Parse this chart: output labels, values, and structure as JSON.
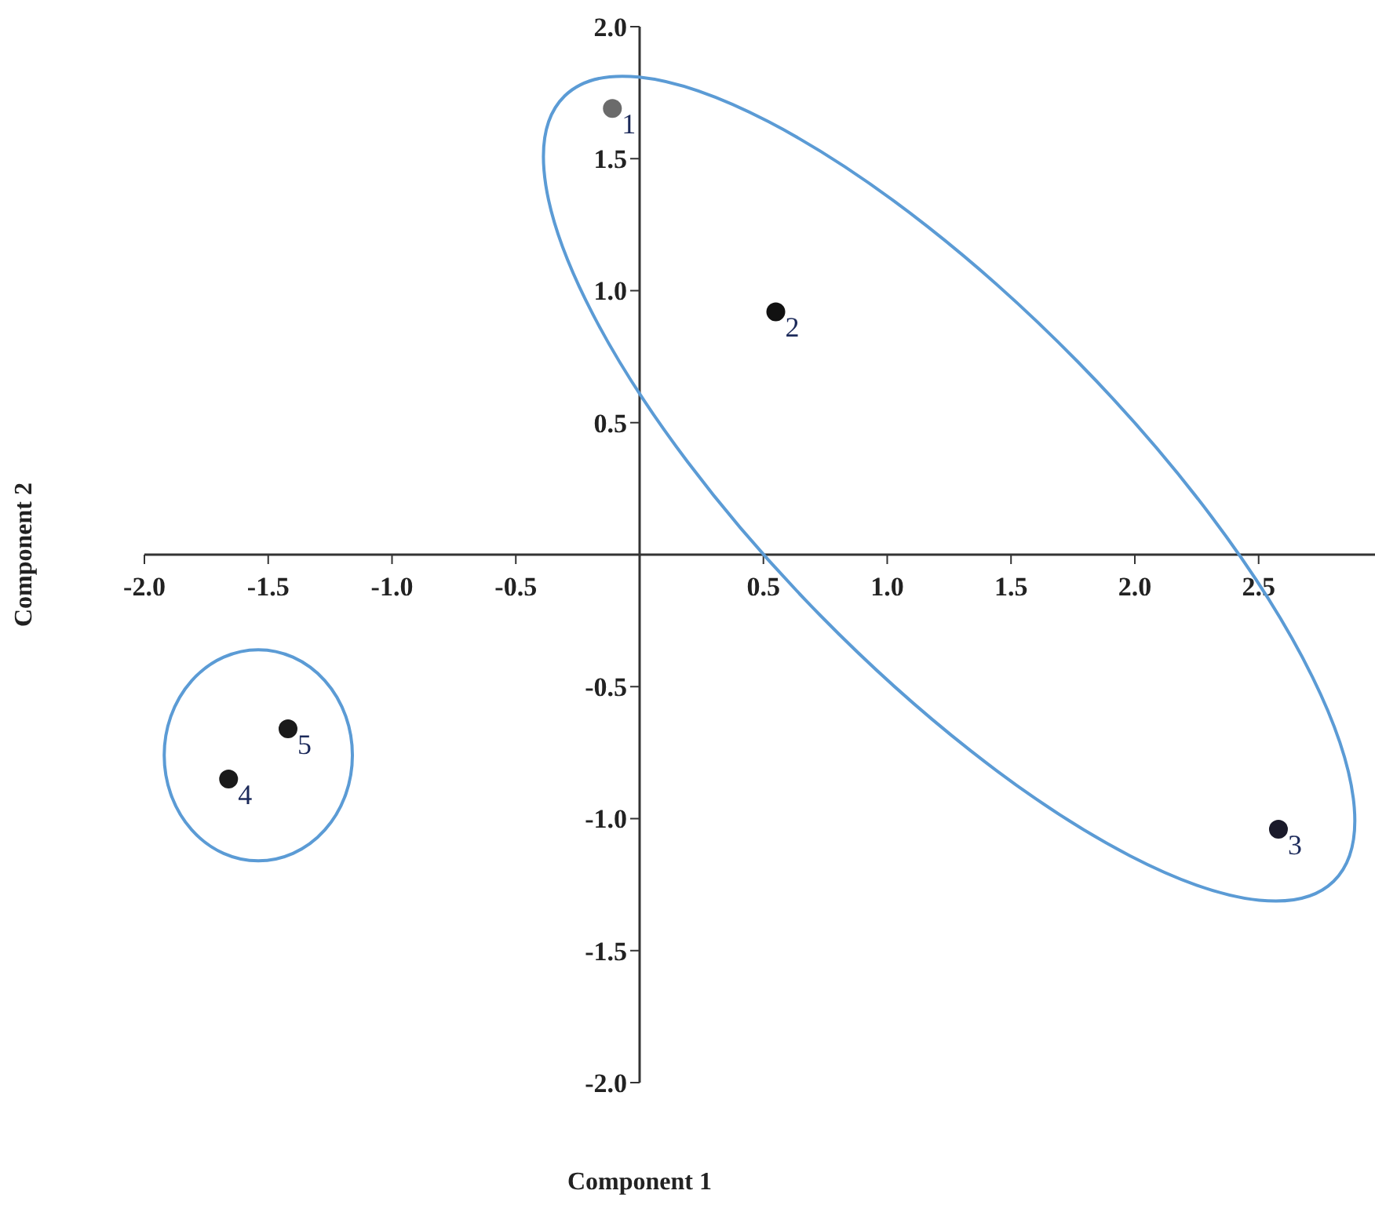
{
  "chart_data": {
    "type": "scatter",
    "xlabel": "Component 1",
    "ylabel": "Component 2",
    "x": [
      -0.11,
      0.55,
      2.58,
      -1.66,
      -1.42
    ],
    "values": [
      1.69,
      0.92,
      -1.04,
      -0.85,
      -0.66
    ],
    "colors": [
      "#6b6b6b",
      "#111111",
      "#1a1a2a",
      "#1a1a1a",
      "#1a1a1a"
    ],
    "marker": "circle",
    "grid": false,
    "xlim": [
      -2.0,
      2.97
    ],
    "xticks": [
      {
        "value": -2,
        "label": "-2.0"
      },
      -1.5,
      {
        "value": -1,
        "label": "-1.0"
      },
      -0.5,
      0.5,
      {
        "value": 1,
        "label": "1.0"
      },
      1.5,
      {
        "value": 2,
        "label": "2.0"
      },
      2.5
    ],
    "ylim": [
      -2.0,
      2.0
    ],
    "yticks": [
      {
        "value": -2,
        "label": "-2.0"
      },
      -1.5,
      {
        "value": -1,
        "label": "-1.0"
      },
      -0.5,
      0.5,
      {
        "value": 1,
        "label": "1.0"
      },
      1.5,
      {
        "value": 2,
        "label": "2.0"
      }
    ],
    "annotations": [
      {
        "text": "1",
        "x": -0.11,
        "y": 1.69
      },
      {
        "text": "2",
        "x": 0.55,
        "y": 0.92
      },
      {
        "text": "3",
        "x": 2.58,
        "y": -1.04
      },
      {
        "text": "4",
        "x": -1.66,
        "y": -0.85
      },
      {
        "text": "5",
        "x": -1.42,
        "y": -0.66
      }
    ]
  }
}
